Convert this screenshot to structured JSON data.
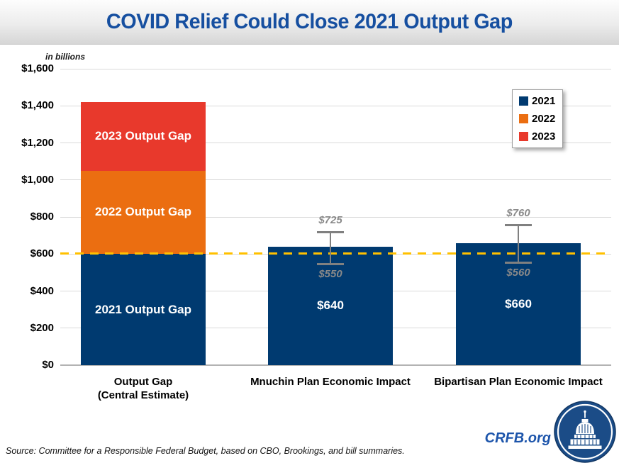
{
  "chart_data": {
    "type": "bar",
    "stacked": true,
    "title": "COVID Relief Could Close 2021 Output Gap",
    "units_label": "in billions",
    "ylim": [
      0,
      1600
    ],
    "ytick_step": 200,
    "ytick_labels": [
      "$0",
      "$200",
      "$400",
      "$600",
      "$800",
      "$1,000",
      "$1,200",
      "$1,400",
      "$1,600"
    ],
    "grid": "horizontal",
    "categories": [
      [
        "Output Gap",
        "(Central Estimate)"
      ],
      [
        "Mnuchin Plan Economic Impact"
      ],
      [
        "Bipartisan Plan Economic Impact"
      ]
    ],
    "series": [
      {
        "name": "2021",
        "color": "#003A70",
        "values": [
          600,
          640,
          660
        ]
      },
      {
        "name": "2022",
        "color": "#EB6E11",
        "values": [
          450,
          null,
          null
        ]
      },
      {
        "name": "2023",
        "color": "#E8392C",
        "values": [
          370,
          null,
          null
        ]
      }
    ],
    "segment_labels": [
      [
        "2021 Output Gap",
        "2022 Output Gap",
        "2023 Output Gap"
      ],
      [
        "$640",
        null,
        null
      ],
      [
        "$660",
        null,
        null
      ]
    ],
    "error_bars": [
      null,
      {
        "low": 550,
        "high": 725,
        "low_label": "$550",
        "high_label": "$725"
      },
      {
        "low": 560,
        "high": 760,
        "low_label": "$560",
        "high_label": "$760"
      }
    ],
    "reference_line": {
      "value": 600,
      "color": "#FFC000",
      "style": "dashed"
    },
    "legend": {
      "position": "top-right",
      "entries": [
        "2021",
        "2022",
        "2023"
      ]
    }
  },
  "footer": {
    "source": "Source: Committee for a Responsible Federal Budget, based on CBO, Brookings, and bill summaries.",
    "site": "CRFB.org"
  },
  "colors": {
    "title": "#164FA0",
    "error_bar": "#808080",
    "error_label": "#898989",
    "crfb_blue": "#1D55AB",
    "logo_navy": "#1B4C87"
  }
}
